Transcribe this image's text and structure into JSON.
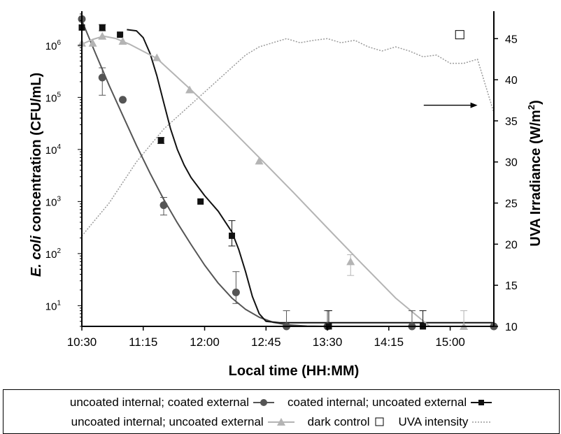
{
  "chart_data": {
    "type": "line",
    "x_label": "Local time (HH:MM)",
    "y_label_left_italic": "E. coli",
    "y_label_left_rest": " concentration (CFU/mL)",
    "y_label_right": "UVA Irradiance (W/m",
    "y_label_right_sup": "2",
    "y_label_right_close": ")",
    "x_ticks": [
      "10:30",
      "11:15",
      "12:00",
      "12:45",
      "13:30",
      "14:15",
      "15:00"
    ],
    "x_tick_minutes": [
      0,
      45,
      90,
      135,
      180,
      225,
      270
    ],
    "x_range_minutes": [
      0,
      302
    ],
    "y_left_scale": "log",
    "y_left_range": [
      4,
      4000000
    ],
    "y_left_ticks": [
      {
        "value": 10,
        "base": "10",
        "exp": "1"
      },
      {
        "value": 100,
        "base": "10",
        "exp": "2"
      },
      {
        "value": 1000,
        "base": "10",
        "exp": "3"
      },
      {
        "value": 10000,
        "base": "10",
        "exp": "4"
      },
      {
        "value": 100000,
        "base": "10",
        "exp": "5"
      },
      {
        "value": 1000000,
        "base": "10",
        "exp": "6"
      }
    ],
    "y_right_range": [
      10,
      48
    ],
    "y_right_ticks": [
      10,
      15,
      20,
      25,
      30,
      35,
      40,
      45
    ],
    "series": [
      {
        "name": "uncoated internal; coated external",
        "color": "#555555",
        "marker": "circle",
        "points": [
          {
            "t": 0,
            "y": 3200000
          },
          {
            "t": 15,
            "y": 240000,
            "err": [
              110000,
              370000
            ]
          },
          {
            "t": 30,
            "y": 90000
          },
          {
            "t": 60,
            "y": 850,
            "err": [
              550,
              1200
            ]
          },
          {
            "t": 113,
            "y": 18,
            "err": [
              11,
              45
            ]
          },
          {
            "t": 150,
            "y": 4,
            "err": [
              4,
              8
            ]
          },
          {
            "t": 180,
            "y": 4,
            "err": [
              4,
              8
            ]
          },
          {
            "t": 242,
            "y": 4,
            "err": [
              4,
              8
            ]
          },
          {
            "t": 302,
            "y": 4
          }
        ],
        "fit": [
          [
            0,
            3000000
          ],
          [
            10,
            700000
          ],
          [
            20,
            170000
          ],
          [
            30,
            45000
          ],
          [
            40,
            12000
          ],
          [
            50,
            3500
          ],
          [
            60,
            1100
          ],
          [
            70,
            390
          ],
          [
            80,
            150
          ],
          [
            90,
            60
          ],
          [
            100,
            27
          ],
          [
            110,
            14
          ],
          [
            120,
            8.5
          ],
          [
            130,
            6
          ],
          [
            140,
            4.8
          ],
          [
            150,
            4.3
          ],
          [
            165,
            4.05
          ],
          [
            180,
            4
          ]
        ]
      },
      {
        "name": "coated internal; uncoated external",
        "color": "#111111",
        "marker": "square",
        "points": [
          {
            "t": 0,
            "y": 2200000
          },
          {
            "t": 15,
            "y": 2200000,
            "err": [
              1900000,
              2500000
            ]
          },
          {
            "t": 28,
            "y": 1600000
          },
          {
            "t": 58,
            "y": 15000,
            "err": [
              13000,
              17000
            ]
          },
          {
            "t": 87,
            "y": 1000
          },
          {
            "t": 110,
            "y": 220,
            "err": [
              140,
              430
            ]
          },
          {
            "t": 181,
            "y": 4,
            "err": [
              4,
              8
            ]
          },
          {
            "t": 250,
            "y": 4,
            "err": [
              4,
              8
            ]
          }
        ],
        "fit": [
          [
            33,
            2000000
          ],
          [
            40,
            1900000
          ],
          [
            45,
            1400000
          ],
          [
            50,
            700000
          ],
          [
            55,
            260000
          ],
          [
            60,
            80000
          ],
          [
            65,
            25000
          ],
          [
            70,
            10000
          ],
          [
            75,
            5000
          ],
          [
            80,
            2900
          ],
          [
            90,
            1300
          ],
          [
            100,
            650
          ],
          [
            110,
            260
          ],
          [
            115,
            120
          ],
          [
            120,
            45
          ],
          [
            125,
            15
          ],
          [
            130,
            7
          ],
          [
            135,
            5
          ],
          [
            145,
            4.7
          ],
          [
            170,
            4.7
          ],
          [
            302,
            4.7
          ]
        ]
      },
      {
        "name": "uncoated internal; uncoated external",
        "color": "#b4b4b4",
        "marker": "triangle",
        "points": [
          {
            "t": 0,
            "y": 1100000
          },
          {
            "t": 8,
            "y": 1100000
          },
          {
            "t": 15,
            "y": 1500000
          },
          {
            "t": 30,
            "y": 1200000
          },
          {
            "t": 55,
            "y": 580000
          },
          {
            "t": 79,
            "y": 140000
          },
          {
            "t": 130,
            "y": 6000
          },
          {
            "t": 197,
            "y": 70,
            "err": [
              38,
              95
            ]
          },
          {
            "t": 280,
            "y": 4,
            "err": [
              4,
              8
            ]
          }
        ],
        "fit": [
          [
            0,
            1050000
          ],
          [
            8,
            1300000
          ],
          [
            16,
            1500000
          ],
          [
            25,
            1350000
          ],
          [
            35,
            1050000
          ],
          [
            55,
            560000
          ],
          [
            80,
            140000
          ],
          [
            105,
            32000
          ],
          [
            130,
            7000
          ],
          [
            155,
            1500
          ],
          [
            180,
            310
          ],
          [
            205,
            65
          ],
          [
            230,
            14
          ],
          [
            255,
            4
          ],
          [
            280,
            4
          ]
        ]
      }
    ],
    "dark_control": {
      "name": "dark control",
      "t": 277,
      "y": 1600000,
      "arrow_label_t": [
        266,
        290
      ],
      "arrow_y_right": 36.9
    },
    "uva": {
      "name": "UVA intensity",
      "color": "#9a9a9a",
      "points": [
        [
          0,
          21
        ],
        [
          10,
          23
        ],
        [
          20,
          25
        ],
        [
          30,
          27.5
        ],
        [
          40,
          30
        ],
        [
          50,
          32
        ],
        [
          60,
          34
        ],
        [
          70,
          35.5
        ],
        [
          80,
          37
        ],
        [
          90,
          38.5
        ],
        [
          100,
          40
        ],
        [
          110,
          41.5
        ],
        [
          120,
          43
        ],
        [
          130,
          44
        ],
        [
          140,
          44.5
        ],
        [
          150,
          45
        ],
        [
          160,
          44.5
        ],
        [
          170,
          44.8
        ],
        [
          180,
          45
        ],
        [
          190,
          44.5
        ],
        [
          200,
          44.8
        ],
        [
          210,
          44
        ],
        [
          220,
          43.5
        ],
        [
          230,
          44
        ],
        [
          240,
          43.5
        ],
        [
          250,
          42.8
        ],
        [
          260,
          43
        ],
        [
          270,
          42
        ],
        [
          280,
          42
        ],
        [
          290,
          42.5
        ],
        [
          302,
          36
        ]
      ]
    }
  },
  "legend": {
    "row1": [
      {
        "label": "uncoated internal; coated external",
        "series": 0
      },
      {
        "label": "coated internal; uncoated external",
        "series": 1
      }
    ],
    "row2": [
      {
        "label": "uncoated internal; uncoated external",
        "series": 2
      },
      {
        "label": "dark control",
        "series": "dark"
      },
      {
        "label": "UVA intensity",
        "series": "uva"
      }
    ]
  }
}
